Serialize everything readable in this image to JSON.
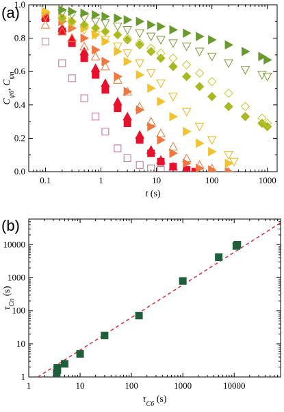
{
  "chart_data": [
    {
      "type": "scatter",
      "panel_label": "(a)",
      "xlabel": "t",
      "xunit": "(s)",
      "ylabel": "C_{ψ_6}, C_{ψ_n}",
      "x_scale": "log",
      "xlim": [
        0.05,
        1500
      ],
      "ylim": [
        0.0,
        1.0
      ],
      "x_ticks": [
        {
          "value": 0.1,
          "label": "0.1"
        },
        {
          "value": 1,
          "label": "1"
        },
        {
          "value": 10,
          "label": "10"
        },
        {
          "value": 100,
          "label": "100"
        },
        {
          "value": 1000,
          "label": "1000"
        }
      ],
      "y_ticks": [
        {
          "value": 0.0,
          "label": "0.0"
        },
        {
          "value": 0.2,
          "label": "0.2"
        },
        {
          "value": 0.4,
          "label": "0.4"
        },
        {
          "value": 0.6,
          "label": "0.6"
        },
        {
          "value": 0.8,
          "label": "0.8"
        },
        {
          "value": 1.0,
          "label": "1.0"
        }
      ],
      "series": [
        {
          "color": "#c06a8e",
          "marker": "square-open",
          "x": [
            0.1,
            0.2,
            0.3,
            0.5,
            0.8,
            1.2,
            2,
            3,
            5,
            8,
            12,
            20
          ],
          "y": [
            0.78,
            0.65,
            0.56,
            0.44,
            0.33,
            0.24,
            0.14,
            0.08,
            0.04,
            0.02,
            0.01,
            0.0
          ]
        },
        {
          "color": "#e8112d",
          "marker": "square-filled",
          "x": [
            0.1,
            0.2,
            0.3,
            0.5,
            0.8,
            1.2,
            2,
            3,
            5,
            8,
            12,
            20,
            35,
            50
          ],
          "y": [
            0.92,
            0.84,
            0.77,
            0.68,
            0.58,
            0.49,
            0.38,
            0.29,
            0.19,
            0.11,
            0.06,
            0.03,
            0.01,
            0.0
          ]
        },
        {
          "color": "#e8112d",
          "marker": "triangle-up-filled",
          "x": [
            0.1,
            0.2,
            0.3,
            0.5,
            0.8,
            1.2,
            2,
            3,
            5,
            8,
            12,
            20
          ],
          "y": [
            0.93,
            0.86,
            0.8,
            0.72,
            0.62,
            0.53,
            0.42,
            0.33,
            0.22,
            0.13,
            0.07,
            0.03
          ]
        },
        {
          "color": "#f07840",
          "marker": "triangle-right-filled",
          "x": [
            0.1,
            0.2,
            0.3,
            0.5,
            0.8,
            1.2,
            2,
            3,
            5,
            8,
            12,
            20,
            35,
            60,
            100,
            200
          ],
          "y": [
            0.95,
            0.9,
            0.86,
            0.8,
            0.73,
            0.66,
            0.57,
            0.48,
            0.37,
            0.27,
            0.19,
            0.11,
            0.05,
            0.02,
            0.01,
            0.0
          ]
        },
        {
          "color": "#e87a3a",
          "marker": "triangle-up-open",
          "x": [
            0.1,
            0.2,
            0.3,
            0.5,
            0.8,
            1.2,
            2,
            3,
            5,
            8,
            12,
            20,
            35,
            60,
            100,
            200
          ],
          "y": [
            0.88,
            0.84,
            0.8,
            0.75,
            0.69,
            0.63,
            0.55,
            0.48,
            0.39,
            0.3,
            0.23,
            0.15,
            0.08,
            0.04,
            0.02,
            0.0
          ]
        },
        {
          "color": "#f2c230",
          "marker": "triangle-right-filled",
          "x": [
            0.1,
            0.2,
            0.3,
            0.5,
            0.8,
            1.2,
            2,
            3,
            5,
            8,
            12,
            20,
            35,
            60,
            100,
            200
          ],
          "y": [
            0.96,
            0.93,
            0.9,
            0.86,
            0.82,
            0.78,
            0.72,
            0.66,
            0.58,
            0.5,
            0.42,
            0.33,
            0.24,
            0.17,
            0.12,
            0.05
          ]
        },
        {
          "color": "#e8b420",
          "marker": "triangle-down-open",
          "x": [
            0.1,
            0.2,
            0.3,
            0.5,
            0.8,
            1.2,
            2,
            3,
            5,
            8,
            12,
            20,
            35,
            60,
            100,
            200,
            250
          ],
          "y": [
            0.93,
            0.9,
            0.88,
            0.85,
            0.82,
            0.79,
            0.75,
            0.71,
            0.65,
            0.59,
            0.53,
            0.45,
            0.36,
            0.27,
            0.19,
            0.1,
            0.06
          ]
        },
        {
          "color": "#a8b820",
          "marker": "diamond-filled",
          "x": [
            0.2,
            0.3,
            0.5,
            0.8,
            1.2,
            2,
            3,
            5,
            8,
            12,
            20,
            35,
            60,
            100,
            200,
            400,
            800,
            1000
          ],
          "y": [
            0.92,
            0.9,
            0.88,
            0.86,
            0.84,
            0.82,
            0.79,
            0.76,
            0.72,
            0.68,
            0.63,
            0.57,
            0.51,
            0.45,
            0.39,
            0.33,
            0.29,
            0.27
          ]
        },
        {
          "color": "#c8c838",
          "marker": "diamond-open",
          "x": [
            0.2,
            0.3,
            0.5,
            0.8,
            1.2,
            2,
            3,
            5,
            8,
            12,
            20,
            35,
            60,
            100,
            200,
            400,
            800,
            1000
          ],
          "y": [
            0.92,
            0.9,
            0.88,
            0.86,
            0.84,
            0.82,
            0.8,
            0.77,
            0.74,
            0.71,
            0.68,
            0.64,
            0.59,
            0.54,
            0.47,
            0.39,
            0.32,
            0.29
          ]
        },
        {
          "color": "#7a9a38",
          "marker": "triangle-down-open",
          "x": [
            0.2,
            0.3,
            0.5,
            0.8,
            1.2,
            2,
            3,
            5,
            8,
            12,
            20,
            35,
            60,
            100,
            200,
            400,
            800,
            1000
          ],
          "y": [
            0.95,
            0.94,
            0.92,
            0.9,
            0.89,
            0.87,
            0.85,
            0.83,
            0.81,
            0.79,
            0.77,
            0.75,
            0.72,
            0.69,
            0.65,
            0.61,
            0.58,
            0.57
          ]
        },
        {
          "color": "#6a9a2e",
          "marker": "triangle-right-filled",
          "x": [
            0.2,
            0.3,
            0.5,
            0.8,
            1.2,
            2,
            3,
            5,
            8,
            12,
            20,
            35,
            60,
            100,
            200,
            400,
            800,
            1000
          ],
          "y": [
            0.97,
            0.96,
            0.95,
            0.94,
            0.93,
            0.92,
            0.91,
            0.9,
            0.88,
            0.87,
            0.85,
            0.83,
            0.81,
            0.79,
            0.76,
            0.72,
            0.69,
            0.67
          ]
        }
      ]
    },
    {
      "type": "scatter",
      "panel_label": "(b)",
      "xlabel": "τ_{C6}",
      "xunit": "(s)",
      "ylabel": "τ_{Cn}",
      "yunit": "(s)",
      "x_scale": "log",
      "y_scale": "log",
      "xlim": [
        1,
        80000
      ],
      "ylim": [
        1,
        60000
      ],
      "x_ticks": [
        {
          "value": 1,
          "label": "1"
        },
        {
          "value": 10,
          "label": "10"
        },
        {
          "value": 100,
          "label": "100"
        },
        {
          "value": 1000,
          "label": "1000"
        },
        {
          "value": 10000,
          "label": "10000"
        }
      ],
      "y_ticks": [
        {
          "value": 1,
          "label": "1"
        },
        {
          "value": 10,
          "label": "10"
        },
        {
          "value": 100,
          "label": "100"
        },
        {
          "value": 1000,
          "label": "1000"
        },
        {
          "value": 10000,
          "label": "10000"
        }
      ],
      "series": [
        {
          "color": "#1f5e3a",
          "marker": "square-filled",
          "x": [
            3.5,
            3.6,
            3.6,
            5,
            10,
            30,
            140,
            1000,
            5000,
            11000,
            11500
          ],
          "y": [
            1.3,
            1.6,
            1.9,
            2.5,
            5,
            18,
            72,
            800,
            4200,
            9200,
            10000
          ]
        }
      ],
      "fit_line": {
        "color": "#d0303a",
        "style": "dashed",
        "x": [
          1.5,
          80000
        ],
        "y": [
          1.0,
          46000
        ]
      }
    }
  ]
}
